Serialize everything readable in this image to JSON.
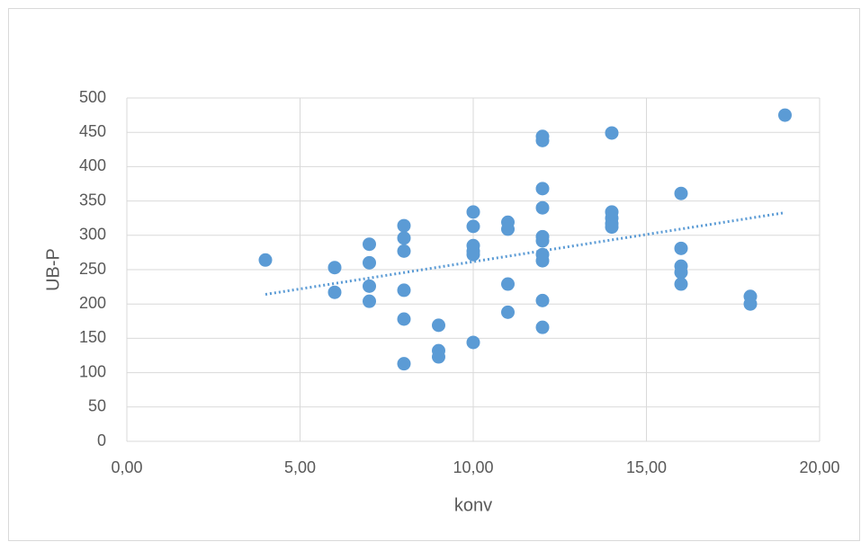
{
  "chart_data": {
    "type": "scatter",
    "xlabel": "konv",
    "ylabel": "UB-P",
    "xlim": [
      0,
      20
    ],
    "xticks": [
      {
        "value": 0,
        "label": "0,00"
      },
      {
        "value": 5,
        "label": "5,00"
      },
      {
        "value": 10,
        "label": "10,00"
      },
      {
        "value": 15,
        "label": "15,00"
      },
      {
        "value": 20,
        "label": "20,00"
      }
    ],
    "ylim": [
      0,
      500
    ],
    "yticks": [
      0,
      50,
      100,
      150,
      200,
      250,
      300,
      350,
      400,
      450,
      500
    ],
    "grid": true,
    "series": [
      {
        "color": "#5b9bd5",
        "x": [
          4,
          6,
          6,
          7,
          7,
          7,
          7,
          8,
          8,
          8,
          8,
          8,
          8,
          9,
          9,
          9,
          10,
          10,
          10,
          10,
          10,
          10,
          11,
          11,
          11,
          11,
          12,
          12,
          12,
          12,
          12,
          12,
          12,
          12,
          12,
          12,
          14,
          14,
          14,
          14,
          14,
          16,
          16,
          16,
          16,
          16,
          18,
          18,
          19
        ],
        "values": [
          264,
          253,
          217,
          287,
          260,
          226,
          204,
          314,
          296,
          277,
          220,
          178,
          113,
          169,
          132,
          123,
          334,
          313,
          285,
          277,
          272,
          144,
          319,
          309,
          229,
          188,
          444,
          438,
          368,
          340,
          298,
          292,
          272,
          263,
          205,
          166,
          449,
          334,
          325,
          317,
          312,
          361,
          281,
          255,
          246,
          229,
          211,
          200,
          475
        ]
      }
    ],
    "trendline": {
      "color": "#5b9bd5",
      "x": [
        4,
        19
      ],
      "values": [
        214,
        333
      ]
    }
  }
}
